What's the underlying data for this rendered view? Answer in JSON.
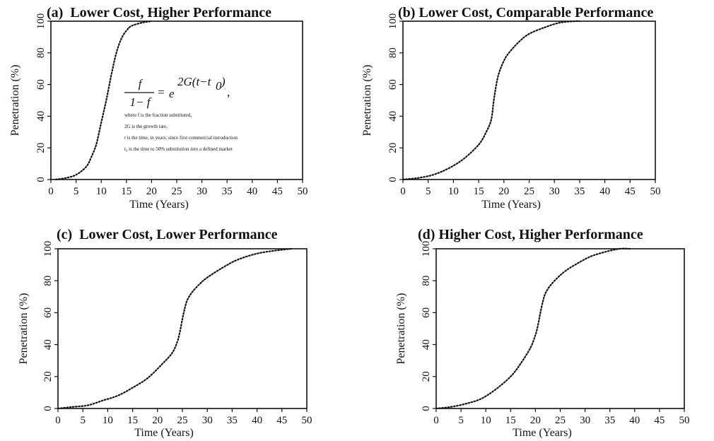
{
  "chart_data": [
    {
      "type": "line",
      "title": "(a)  Lower Cost, Higher Performance",
      "xlabel": "Time (Years)",
      "ylabel": "Penetration (%)",
      "xlim": [
        0,
        50
      ],
      "ylim": [
        0,
        100
      ],
      "x_ticks": [
        "0",
        "5",
        "10",
        "15",
        "20",
        "25",
        "30",
        "35",
        "40",
        "45",
        "50"
      ],
      "y_ticks": [
        "0",
        "20",
        "40",
        "60",
        "80",
        "100"
      ],
      "grid": false,
      "series": [
        {
          "style": "dotted",
          "x": [
            1,
            3,
            5,
            7,
            8,
            9,
            10,
            11,
            12,
            13,
            14,
            15,
            16,
            18,
            20
          ],
          "y": [
            0,
            1,
            3,
            8,
            14,
            22,
            36,
            50,
            66,
            80,
            89,
            94,
            97,
            99,
            100
          ]
        }
      ],
      "equation": {
        "numerator": "f",
        "denominator": "1− f",
        "equals": "=",
        "rhs_base": "e",
        "rhs_exponent": "2G(t−t",
        "rhs_exponent_sub": "0",
        "rhs_exponent_close": ")",
        "trailing": ",",
        "notes": [
          "where f is the fraction substituted,",
          "2G is the growth rate,",
          "t is the time, in years, since first commercial introduction",
          "t₀ is the time to 50% substitution into a defined market"
        ]
      }
    },
    {
      "type": "line",
      "title": "(b) Lower Cost, Comparable Performance",
      "xlabel": "Time (Years)",
      "ylabel": "Penetration (%)",
      "xlim": [
        0,
        50
      ],
      "ylim": [
        0,
        100
      ],
      "x_ticks": [
        "0",
        "5",
        "10",
        "15",
        "20",
        "25",
        "30",
        "35",
        "40",
        "45",
        "50"
      ],
      "y_ticks": [
        "0",
        "20",
        "40",
        "60",
        "80",
        "100"
      ],
      "grid": false,
      "series": [
        {
          "style": "dotted",
          "x": [
            0,
            3,
            6,
            9,
            12,
            15,
            16.5,
            17.5,
            18,
            18.5,
            19,
            20,
            21,
            23,
            25,
            28,
            31,
            34,
            35
          ],
          "y": [
            0,
            1,
            3,
            7,
            13,
            22,
            30,
            38,
            50,
            60,
            67,
            75,
            80,
            87,
            92,
            96,
            99,
            100,
            100
          ]
        }
      ]
    },
    {
      "type": "line",
      "title": "(c)  Lower Cost, Lower Performance",
      "xlabel": "Time (Years)",
      "ylabel": "Penetration (%)",
      "xlim": [
        0,
        50
      ],
      "ylim": [
        0,
        100
      ],
      "x_ticks": [
        "0",
        "5",
        "10",
        "15",
        "20",
        "25",
        "30",
        "35",
        "40",
        "45",
        "50"
      ],
      "y_ticks": [
        "0",
        "20",
        "40",
        "60",
        "80",
        "100"
      ],
      "grid": false,
      "series": [
        {
          "style": "dotted",
          "x": [
            0,
            3,
            6,
            9,
            12,
            15,
            18,
            21,
            23,
            24,
            24.5,
            25,
            25.5,
            26,
            27,
            28.5,
            30,
            33,
            36,
            40,
            44,
            47
          ],
          "y": [
            0,
            1,
            2,
            5,
            8,
            13,
            19,
            28,
            35,
            42,
            48,
            56,
            63,
            68,
            73,
            78,
            82,
            88,
            93,
            97,
            99,
            100
          ]
        }
      ]
    },
    {
      "type": "line",
      "title": "(d) Higher Cost, Higher Performance",
      "xlabel": "Time (Years)",
      "ylabel": "Penetration (%)",
      "xlim": [
        0,
        50
      ],
      "ylim": [
        0,
        100
      ],
      "x_ticks": [
        "0",
        "5",
        "10",
        "15",
        "20",
        "25",
        "30",
        "35",
        "40",
        "45",
        "50"
      ],
      "y_ticks": [
        "0",
        "20",
        "40",
        "60",
        "80",
        "100"
      ],
      "grid": false,
      "series": [
        {
          "style": "dotted",
          "x": [
            0,
            3,
            6,
            9,
            12,
            15,
            17,
            19,
            20,
            20.5,
            21,
            21.5,
            22,
            23,
            24.5,
            26,
            28,
            31,
            34,
            37,
            39
          ],
          "y": [
            0,
            1,
            3,
            6,
            12,
            20,
            28,
            38,
            46,
            52,
            60,
            67,
            72,
            77,
            82,
            86,
            90,
            95,
            98,
            100,
            100
          ]
        }
      ]
    }
  ]
}
